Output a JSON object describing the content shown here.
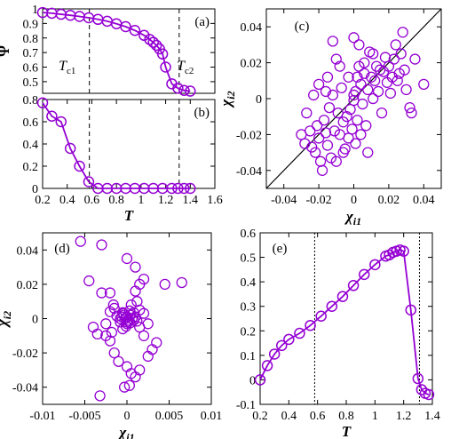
{
  "figure": {
    "line_color": "#9400D3",
    "marker_color": "#9400D3"
  },
  "chart_data": [
    {
      "id": "a",
      "type": "line",
      "panel_label": "(a)",
      "ylabel": "Ψ",
      "xlim": [
        0.2,
        1.6
      ],
      "ylim": [
        0.42,
        1.0
      ],
      "yticks": [
        "1",
        "0.9",
        "0.8",
        "0.7",
        "0.6",
        "0.5"
      ],
      "ytick_values": [
        1.0,
        0.9,
        0.8,
        0.7,
        0.6,
        0.5
      ],
      "vlines": [
        0.58,
        1.31
      ],
      "annotations": [
        {
          "text": "T",
          "sub": "c1",
          "x": 0.4,
          "y": 0.58
        },
        {
          "text": "T",
          "sub": "c2",
          "x": 1.36,
          "y": 0.58
        }
      ],
      "x": [
        0.2,
        0.275,
        0.35,
        0.425,
        0.5,
        0.575,
        0.65,
        0.725,
        0.8,
        0.875,
        0.95,
        1.025,
        1.07,
        1.1,
        1.125,
        1.15,
        1.175,
        1.2,
        1.25,
        1.3,
        1.35,
        1.4
      ],
      "y": [
        0.975,
        0.97,
        0.963,
        0.956,
        0.948,
        0.939,
        0.928,
        0.915,
        0.898,
        0.878,
        0.852,
        0.818,
        0.79,
        0.77,
        0.75,
        0.725,
        0.69,
        0.6,
        0.485,
        0.455,
        0.44,
        0.435
      ]
    },
    {
      "id": "b",
      "type": "line",
      "panel_label": "(b)",
      "xlabel": "T",
      "xlim": [
        0.2,
        1.6
      ],
      "ylim": [
        0,
        0.8
      ],
      "xticks": [
        "0.2",
        "0.4",
        "0.6",
        "0.8",
        "1",
        "1.2",
        "1.4",
        "1.6"
      ],
      "xtick_values": [
        0.2,
        0.4,
        0.6,
        0.8,
        1.0,
        1.2,
        1.4,
        1.6
      ],
      "yticks": [
        "0.8",
        "0.6",
        "0.4",
        "0.2",
        "0"
      ],
      "ytick_values": [
        0.8,
        0.6,
        0.4,
        0.2,
        0.0
      ],
      "vlines": [
        0.58,
        1.31
      ],
      "x": [
        0.2,
        0.275,
        0.35,
        0.425,
        0.5,
        0.575,
        0.65,
        0.725,
        0.8,
        0.875,
        0.95,
        1.025,
        1.1,
        1.175,
        1.25,
        1.3,
        1.35,
        1.4
      ],
      "y": [
        0.77,
        0.65,
        0.6,
        0.36,
        0.2,
        0.06,
        0.0,
        0.0,
        0.0,
        0.0,
        0.0,
        0.0,
        0.0,
        0.0,
        0.0,
        0.0,
        0.0,
        0.0
      ]
    },
    {
      "id": "c",
      "type": "scatter",
      "panel_label": "(c)",
      "xlabel": "χi1",
      "ylabel": "χi2",
      "xlim": [
        -0.05,
        0.05
      ],
      "ylim": [
        -0.05,
        0.05
      ],
      "xticks": [
        "-0.04",
        "-0.02",
        "0",
        "0.02",
        "0.04"
      ],
      "xtick_values": [
        -0.04,
        -0.02,
        0,
        0.02,
        0.04
      ],
      "yticks": [
        "0.04",
        "0.02",
        "0",
        "-0.02",
        "-0.04"
      ],
      "ytick_values": [
        0.04,
        0.02,
        0,
        -0.02,
        -0.04
      ],
      "diagonal": true,
      "points": [
        [
          -0.03,
          -0.02
        ],
        [
          -0.028,
          -0.025
        ],
        [
          -0.025,
          -0.018
        ],
        [
          -0.024,
          -0.027
        ],
        [
          -0.022,
          -0.03
        ],
        [
          -0.021,
          -0.015
        ],
        [
          -0.02,
          -0.022
        ],
        [
          -0.019,
          -0.035
        ],
        [
          -0.018,
          -0.04
        ],
        [
          -0.017,
          -0.012
        ],
        [
          -0.016,
          -0.019
        ],
        [
          -0.015,
          -0.026
        ],
        [
          -0.014,
          -0.005
        ],
        [
          -0.013,
          -0.033
        ],
        [
          -0.012,
          0.002
        ],
        [
          -0.011,
          -0.018
        ],
        [
          -0.01,
          0.022
        ],
        [
          -0.009,
          -0.008
        ],
        [
          -0.008,
          -0.02
        ],
        [
          -0.007,
          0.006
        ],
        [
          -0.006,
          -0.013
        ],
        [
          -0.005,
          -0.028
        ],
        [
          -0.004,
          -0.01
        ],
        [
          -0.003,
          0.012
        ],
        [
          -0.002,
          -0.006
        ],
        [
          -0.001,
          -0.017
        ],
        [
          0.0,
          0.002
        ],
        [
          0.0,
          -0.001
        ],
        [
          0.001,
          0.004
        ],
        [
          0.002,
          0.012
        ],
        [
          0.002,
          -0.012
        ],
        [
          0.003,
          0.018
        ],
        [
          0.004,
          0.008
        ],
        [
          0.005,
          -0.003
        ],
        [
          0.006,
          0.02
        ],
        [
          0.006,
          0.014
        ],
        [
          0.007,
          -0.015
        ],
        [
          0.008,
          0.005
        ],
        [
          0.009,
          0.026
        ],
        [
          0.01,
          0.012
        ],
        [
          0.011,
          0.0
        ],
        [
          0.012,
          0.01
        ],
        [
          0.013,
          0.018
        ],
        [
          0.014,
          0.004
        ],
        [
          0.015,
          0.016
        ],
        [
          0.016,
          -0.008
        ],
        [
          0.017,
          0.015
        ],
        [
          0.018,
          0.023
        ],
        [
          0.019,
          0.009
        ],
        [
          0.02,
          0.018
        ],
        [
          0.021,
          0.003
        ],
        [
          0.022,
          0.012
        ],
        [
          0.023,
          0.022
        ],
        [
          0.024,
          0.03
        ],
        [
          0.025,
          0.01
        ],
        [
          0.026,
          0.014
        ],
        [
          0.027,
          0.025
        ],
        [
          0.028,
          0.037
        ],
        [
          0.029,
          0.016
        ],
        [
          0.03,
          0.005
        ],
        [
          0.032,
          -0.005
        ],
        [
          0.033,
          -0.008
        ],
        [
          0.035,
          0.022
        ],
        [
          0.04,
          0.008
        ],
        [
          -0.027,
          -0.008
        ],
        [
          -0.023,
          0.002
        ],
        [
          -0.02,
          0.008
        ],
        [
          -0.016,
          0.004
        ],
        [
          -0.01,
          -0.035
        ],
        [
          -0.006,
          -0.03
        ],
        [
          -0.003,
          -0.022
        ],
        [
          0.001,
          -0.025
        ],
        [
          0.004,
          -0.02
        ],
        [
          0.008,
          -0.03
        ],
        [
          -0.015,
          0.012
        ],
        [
          -0.012,
          0.032
        ],
        [
          -0.008,
          0.018
        ],
        [
          0.003,
          0.03
        ],
        [
          0.011,
          0.025
        ],
        [
          0.0,
          0.034
        ]
      ]
    },
    {
      "id": "d",
      "type": "scatter",
      "panel_label": "(d)",
      "xlabel": "χi1",
      "ylabel": "χi2",
      "xlim": [
        -0.01,
        0.01
      ],
      "ylim": [
        -0.05,
        0.05
      ],
      "xticks": [
        "-0.01",
        "-0.005",
        "0",
        "0.005",
        "0.01"
      ],
      "xtick_values": [
        -0.01,
        -0.005,
        0,
        0.005,
        0.01
      ],
      "yticks": [
        "0.04",
        "0.02",
        "0",
        "-0.02",
        "-0.04"
      ],
      "ytick_values": [
        0.04,
        0.02,
        0,
        -0.02,
        -0.04
      ],
      "points": [
        [
          -0.0055,
          0.045
        ],
        [
          -0.003,
          0.043
        ],
        [
          -0.0045,
          0.022
        ],
        [
          -0.002,
          0.015
        ],
        [
          0.0,
          0.035
        ],
        [
          0.001,
          0.03
        ],
        [
          0.0015,
          0.02
        ],
        [
          0.002,
          0.023
        ],
        [
          0.0045,
          0.02
        ],
        [
          0.0065,
          0.021
        ],
        [
          -0.004,
          -0.005
        ],
        [
          -0.0035,
          -0.009
        ],
        [
          -0.0025,
          -0.01
        ],
        [
          -0.002,
          -0.013
        ],
        [
          -0.0015,
          -0.02
        ],
        [
          -0.001,
          -0.025
        ],
        [
          0.0,
          -0.028
        ],
        [
          0.0005,
          -0.032
        ],
        [
          0.001,
          -0.034
        ],
        [
          0.0015,
          -0.03
        ],
        [
          0.0025,
          -0.022
        ],
        [
          0.003,
          -0.018
        ],
        [
          0.0035,
          -0.014
        ],
        [
          0.002,
          -0.01
        ],
        [
          0.0015,
          -0.005
        ],
        [
          -0.0003,
          -0.04
        ],
        [
          0.0003,
          -0.039
        ],
        [
          -0.0008,
          0.0
        ],
        [
          -0.0006,
          0.001
        ],
        [
          -0.0004,
          0.002
        ],
        [
          -0.0002,
          0.0
        ],
        [
          0.0,
          0.001
        ],
        [
          0.0002,
          -0.001
        ],
        [
          0.0004,
          0.002
        ],
        [
          0.0006,
          0.0
        ],
        [
          0.0008,
          -0.001
        ],
        [
          0.001,
          0.001
        ],
        [
          -0.0012,
          0.0015
        ],
        [
          0.0012,
          -0.0015
        ],
        [
          -0.0008,
          -0.002
        ],
        [
          0.0004,
          -0.0025
        ],
        [
          -0.0004,
          0.003
        ],
        [
          0.0,
          -0.003
        ],
        [
          0.0015,
          0.005
        ],
        [
          -0.0015,
          0.006
        ],
        [
          0.0005,
          0.008
        ],
        [
          -0.0005,
          -0.006
        ],
        [
          0.0012,
          0.01
        ],
        [
          -0.002,
          0.004
        ],
        [
          0.0025,
          -0.003
        ],
        [
          -0.003,
          0.015
        ],
        [
          0.001,
          0.016
        ],
        [
          -0.0032,
          -0.045
        ],
        [
          0.0,
          -0.002
        ],
        [
          -0.0005,
          0.0035
        ],
        [
          0.0008,
          0.0035
        ],
        [
          -0.0025,
          -0.003
        ],
        [
          0.002,
          0.003
        ],
        [
          -0.0018,
          -0.008
        ],
        [
          -0.0016,
          0.008
        ],
        [
          0.0003,
          0.0045
        ],
        [
          -0.0001,
          -0.0045
        ]
      ]
    },
    {
      "id": "e",
      "type": "line",
      "panel_label": "(e)",
      "xlabel": "T",
      "xlim": [
        0.2,
        1.4
      ],
      "ylim": [
        -0.1,
        0.6
      ],
      "xticks": [
        "0.2",
        "0.4",
        "0.6",
        "0.8",
        "1",
        "1.2",
        "1.4"
      ],
      "xtick_values": [
        0.2,
        0.4,
        0.6,
        0.8,
        1.0,
        1.2,
        1.4
      ],
      "yticks": [
        "0.6",
        "0.5",
        "0.4",
        "0.3",
        "0.2",
        "0.1",
        "0",
        "-0.1"
      ],
      "ytick_values": [
        0.6,
        0.5,
        0.4,
        0.3,
        0.2,
        0.1,
        0.0,
        -0.1
      ],
      "vlines": [
        0.58,
        1.31
      ],
      "x": [
        0.2,
        0.25,
        0.3,
        0.35,
        0.4,
        0.475,
        0.55,
        0.625,
        0.7,
        0.775,
        0.85,
        0.925,
        1.0,
        1.075,
        1.1,
        1.125,
        1.15,
        1.175,
        1.2,
        1.25,
        1.3,
        1.325,
        1.35,
        1.375
      ],
      "y": [
        0.0,
        0.058,
        0.105,
        0.14,
        0.165,
        0.19,
        0.222,
        0.26,
        0.3,
        0.34,
        0.385,
        0.43,
        0.47,
        0.505,
        0.51,
        0.52,
        0.525,
        0.53,
        0.525,
        0.285,
        0.005,
        -0.04,
        -0.055,
        -0.06
      ]
    }
  ]
}
